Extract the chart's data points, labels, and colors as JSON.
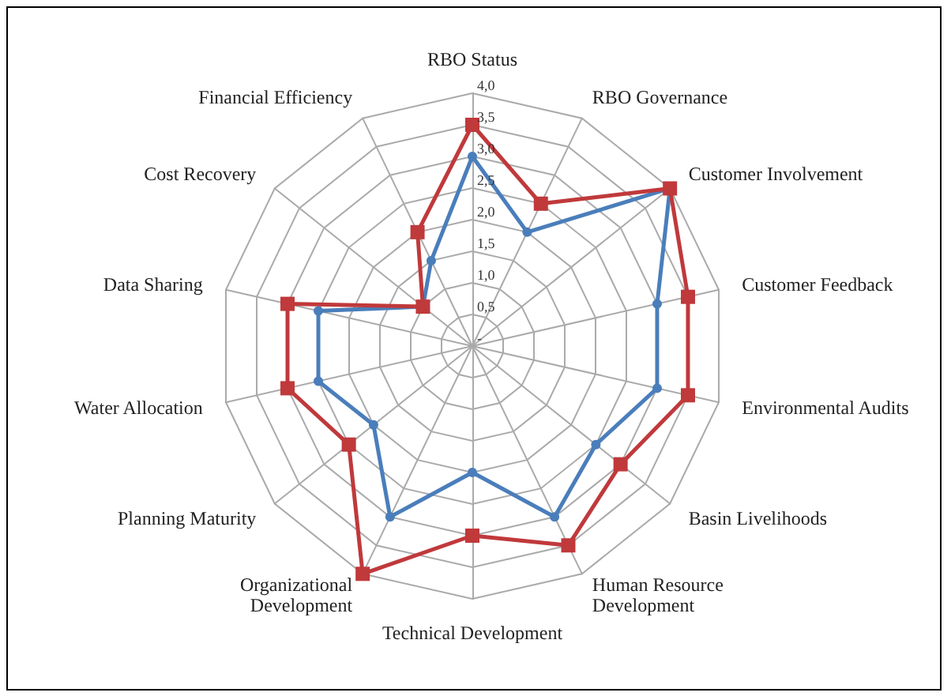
{
  "chart_data": {
    "type": "radar",
    "categories": [
      "RBO Status",
      "RBO Governance",
      "Customer Involvement",
      "Customer Feedback",
      "Environmental Audits",
      "Basin Livelihoods",
      "Human Resource Development",
      "Technical Development",
      "Organizational Development",
      "Planning Maturity",
      "Water Allocation",
      "Data Sharing",
      "Cost Recovery",
      "Financial Efficiency"
    ],
    "series": [
      {
        "color": "#4a7ebb",
        "marker": "circle",
        "values": [
          3.0,
          2.0,
          4.0,
          3.0,
          3.0,
          2.5,
          3.0,
          2.0,
          3.0,
          2.0,
          2.5,
          2.5,
          1.0,
          1.5
        ]
      },
      {
        "color": "#c0393b",
        "marker": "square",
        "values": [
          3.5,
          2.5,
          4.0,
          3.5,
          3.5,
          3.0,
          3.5,
          3.0,
          4.0,
          2.5,
          3.0,
          3.0,
          1.0,
          2.0
        ]
      }
    ],
    "ylim": [
      0,
      4
    ],
    "yticks": [
      {
        "value": 0,
        "label": "-"
      },
      {
        "value": 0.5,
        "label": "0,5"
      },
      {
        "value": 1,
        "label": "1,0"
      },
      {
        "value": 1.5,
        "label": "1,5"
      },
      {
        "value": 2,
        "label": "2,0"
      },
      {
        "value": 2.5,
        "label": "2,5"
      },
      {
        "value": 3,
        "label": "3,0"
      },
      {
        "value": 3.5,
        "label": "3,5"
      },
      {
        "value": 4,
        "label": "4,0"
      }
    ],
    "grid": true
  }
}
